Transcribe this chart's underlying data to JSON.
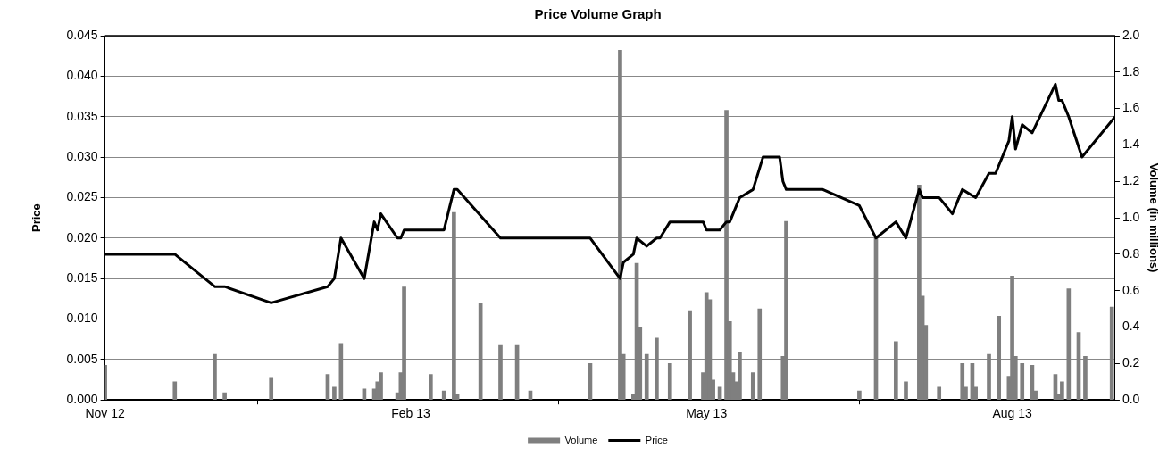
{
  "chart_data": {
    "type": "line",
    "title": "Price Volume Graph",
    "ylabel": "Price",
    "y2label": "Volume (in millions)",
    "xlim": [
      "2012-11-01",
      "2013-09-01"
    ],
    "xticks": [
      {
        "value": "2012-11-01",
        "label": "Nov 12"
      },
      {
        "value": "2013-02-01",
        "label": "Feb 13"
      },
      {
        "value": "2013-05-01",
        "label": "May 13"
      },
      {
        "value": "2013-08-01",
        "label": "Aug 13"
      }
    ],
    "ylim": [
      0,
      0.045
    ],
    "yticks": [
      {
        "value": 0,
        "label": "0.000"
      },
      {
        "value": 0.005,
        "label": "0.005"
      },
      {
        "value": 0.01,
        "label": "0.010"
      },
      {
        "value": 0.015,
        "label": "0.015"
      },
      {
        "value": 0.02,
        "label": "0.020"
      },
      {
        "value": 0.025,
        "label": "0.025"
      },
      {
        "value": 0.03,
        "label": "0.030"
      },
      {
        "value": 0.035,
        "label": "0.035"
      },
      {
        "value": 0.04,
        "label": "0.040"
      },
      {
        "value": 0.045,
        "label": "0.045"
      }
    ],
    "y2lim": [
      0,
      2
    ],
    "y2ticks": [
      {
        "value": 0,
        "label": "0.0"
      },
      {
        "value": 0.2,
        "label": "0.2"
      },
      {
        "value": 0.4,
        "label": "0.4"
      },
      {
        "value": 0.6,
        "label": "0.6"
      },
      {
        "value": 0.8,
        "label": "0.8"
      },
      {
        "value": 1,
        "label": "1.0"
      },
      {
        "value": 1.2,
        "label": "1.2"
      },
      {
        "value": 1.4,
        "label": "1.4"
      },
      {
        "value": 1.6,
        "label": "1.6"
      },
      {
        "value": 1.8,
        "label": "1.8"
      },
      {
        "value": 2,
        "label": "2.0"
      }
    ],
    "grid": "y",
    "legend": "bottom",
    "marker": "none",
    "line_style": "solid",
    "series": [
      {
        "name": "Volume",
        "type": "bar",
        "axis": "y2",
        "color": "#7f7f7f",
        "x": [
          "2012-11-01",
          "2012-11-22",
          "2012-12-04",
          "2012-12-07",
          "2012-12-21",
          "2013-01-07",
          "2013-01-09",
          "2013-01-11",
          "2013-01-18",
          "2013-01-21",
          "2013-01-22",
          "2013-01-23",
          "2013-01-28",
          "2013-01-29",
          "2013-01-30",
          "2013-02-07",
          "2013-02-11",
          "2013-02-14",
          "2013-02-15",
          "2013-02-22",
          "2013-02-28",
          "2013-03-05",
          "2013-03-09",
          "2013-03-27",
          "2013-04-05",
          "2013-04-06",
          "2013-04-09",
          "2013-04-10",
          "2013-04-11",
          "2013-04-13",
          "2013-04-16",
          "2013-04-20",
          "2013-04-26",
          "2013-04-30",
          "2013-05-01",
          "2013-05-02",
          "2013-05-03",
          "2013-05-05",
          "2013-05-07",
          "2013-05-08",
          "2013-05-09",
          "2013-05-10",
          "2013-05-11",
          "2013-05-15",
          "2013-05-17",
          "2013-05-24",
          "2013-05-25",
          "2013-06-16",
          "2013-06-21",
          "2013-06-27",
          "2013-06-30",
          "2013-07-04",
          "2013-07-05",
          "2013-07-06",
          "2013-07-10",
          "2013-07-17",
          "2013-07-18",
          "2013-07-20",
          "2013-07-21",
          "2013-07-25",
          "2013-07-28",
          "2013-07-31",
          "2013-08-01",
          "2013-08-02",
          "2013-08-04",
          "2013-08-07",
          "2013-08-08",
          "2013-08-14",
          "2013-08-15",
          "2013-08-16",
          "2013-08-18",
          "2013-08-21",
          "2013-08-23",
          "2013-08-31"
        ],
        "values": [
          0.19,
          0.1,
          0.25,
          0.04,
          0.12,
          0.14,
          0.07,
          0.31,
          0.06,
          0.06,
          0.1,
          0.15,
          0.04,
          0.15,
          0.62,
          0.14,
          0.05,
          1.03,
          0.03,
          0.53,
          0.3,
          0.3,
          0.05,
          0.2,
          1.92,
          0.25,
          0.03,
          0.75,
          0.4,
          0.25,
          0.34,
          0.2,
          0.49,
          0.15,
          0.59,
          0.55,
          0.11,
          0.07,
          1.59,
          0.43,
          0.15,
          0.1,
          0.26,
          0.15,
          0.5,
          0.24,
          0.98,
          0.05,
          0.9,
          0.32,
          0.1,
          1.18,
          0.57,
          0.41,
          0.07,
          0.2,
          0.07,
          0.2,
          0.07,
          0.25,
          0.46,
          0.13,
          0.68,
          0.24,
          0.2,
          0.19,
          0.05,
          0.14,
          0.03,
          0.1,
          0.61,
          0.37,
          0.24,
          0.51
        ]
      },
      {
        "name": "Price",
        "color": "#000000",
        "x": [
          "2012-11-01",
          "2012-11-22",
          "2012-12-04",
          "2012-12-07",
          "2012-12-21",
          "2013-01-07",
          "2013-01-09",
          "2013-01-11",
          "2013-01-18",
          "2013-01-21",
          "2013-01-22",
          "2013-01-23",
          "2013-01-28",
          "2013-01-29",
          "2013-01-30",
          "2013-02-11",
          "2013-02-14",
          "2013-02-15",
          "2013-02-28",
          "2013-03-27",
          "2013-04-05",
          "2013-04-06",
          "2013-04-09",
          "2013-04-10",
          "2013-04-13",
          "2013-04-16",
          "2013-04-17",
          "2013-04-20",
          "2013-04-30",
          "2013-05-01",
          "2013-05-05",
          "2013-05-07",
          "2013-05-08",
          "2013-05-11",
          "2013-05-15",
          "2013-05-18",
          "2013-05-23",
          "2013-05-24",
          "2013-05-25",
          "2013-06-05",
          "2013-06-16",
          "2013-06-21",
          "2013-06-27",
          "2013-06-30",
          "2013-07-04",
          "2013-07-05",
          "2013-07-10",
          "2013-07-14",
          "2013-07-17",
          "2013-07-21",
          "2013-07-25",
          "2013-07-27",
          "2013-07-31",
          "2013-08-01",
          "2013-08-02",
          "2013-08-04",
          "2013-08-07",
          "2013-08-14",
          "2013-08-15",
          "2013-08-16",
          "2013-08-18",
          "2013-08-22",
          "2013-09-01"
        ],
        "values": [
          0.018,
          0.018,
          0.014,
          0.014,
          0.012,
          0.014,
          0.015,
          0.02,
          0.015,
          0.022,
          0.021,
          0.023,
          0.02,
          0.02,
          0.021,
          0.021,
          0.026,
          0.026,
          0.02,
          0.02,
          0.015,
          0.017,
          0.018,
          0.02,
          0.019,
          0.02,
          0.02,
          0.022,
          0.022,
          0.021,
          0.021,
          0.022,
          0.022,
          0.025,
          0.026,
          0.03,
          0.03,
          0.027,
          0.026,
          0.026,
          0.024,
          0.02,
          0.022,
          0.02,
          0.026,
          0.025,
          0.025,
          0.023,
          0.026,
          0.025,
          0.028,
          0.028,
          0.032,
          0.035,
          0.031,
          0.034,
          0.033,
          0.039,
          0.037,
          0.037,
          0.035,
          0.03,
          0.035
        ]
      }
    ]
  }
}
